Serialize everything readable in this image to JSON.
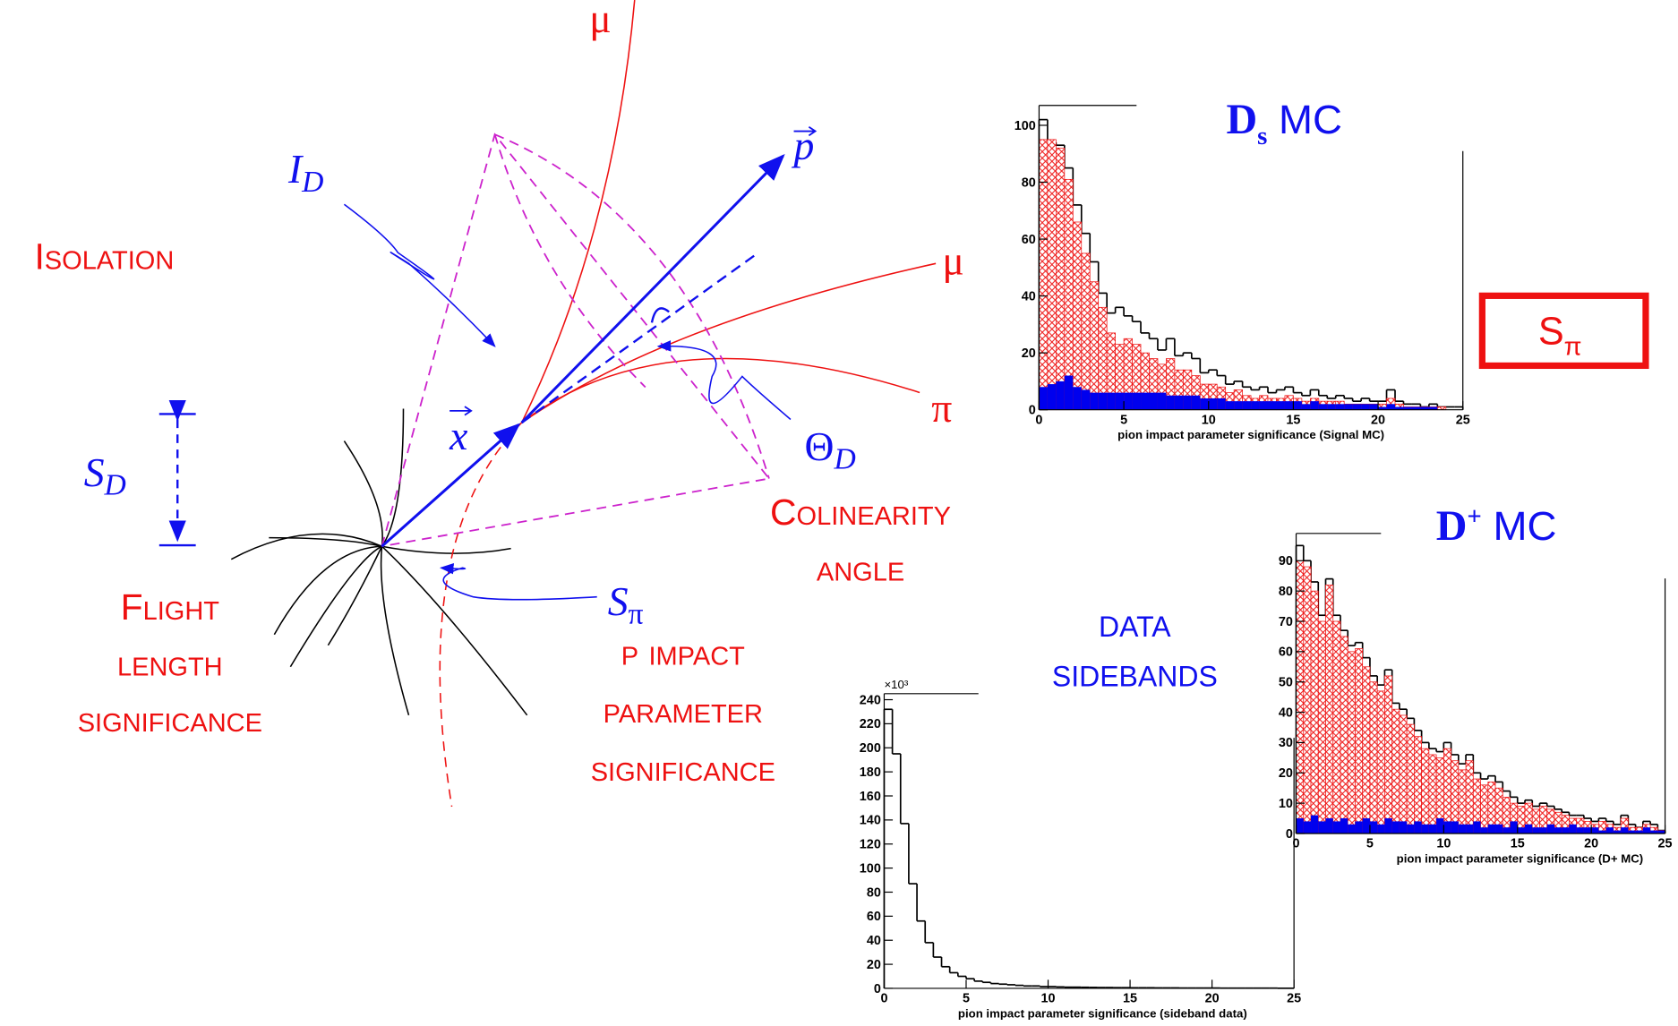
{
  "chart_data": [
    {
      "type": "histogram",
      "title_parts": [
        "D",
        "s",
        " MC"
      ],
      "title_script": "sub",
      "xlabel": "pion impact parameter significance (Signal MC)",
      "bins": [
        0,
        0.5,
        1,
        1.5,
        2,
        2.5,
        3,
        3.5,
        4,
        4.5,
        5,
        5.5,
        6,
        6.5,
        7,
        7.5,
        8,
        8.5,
        9,
        9.5,
        10,
        10.5,
        11,
        11.5,
        12,
        12.5,
        13,
        13.5,
        14,
        14.5,
        15,
        15.5,
        16,
        16.5,
        17,
        17.5,
        18,
        18.5,
        19,
        19.5,
        20,
        20.5,
        21,
        21.5,
        22,
        22.5,
        23,
        23.5,
        24,
        24.5,
        25
      ],
      "xlim": [
        0,
        25
      ],
      "xticks": [
        0,
        5,
        10,
        15,
        20,
        25
      ],
      "ylim": [
        0,
        107
      ],
      "yticks": [
        0,
        20,
        40,
        60,
        80,
        100
      ],
      "series": [
        {
          "color": "#000000",
          "fill": "none",
          "values": [
            102,
            94,
            93,
            85,
            72,
            62,
            52,
            41,
            34,
            36,
            33,
            31,
            27,
            25,
            21,
            25,
            19,
            20,
            18,
            13,
            14,
            12,
            9,
            10,
            8,
            7,
            8,
            6,
            7,
            8,
            6,
            5,
            7,
            5,
            4,
            5,
            4,
            3,
            4,
            3,
            3,
            7,
            3,
            2,
            2,
            1,
            2,
            1,
            1,
            1
          ]
        },
        {
          "color": "#ee1111",
          "fill": "hatch",
          "values": [
            95,
            95,
            92,
            81,
            66,
            55,
            45,
            36,
            27,
            23,
            25,
            23,
            20,
            18,
            16,
            18,
            14,
            14,
            12,
            9,
            9,
            8,
            6,
            7,
            5,
            4,
            5,
            4,
            4,
            5,
            4,
            3,
            4,
            3,
            3,
            3,
            2,
            2,
            2,
            2,
            2,
            4,
            2,
            1,
            1,
            1,
            1,
            1,
            0,
            0
          ]
        },
        {
          "color": "#0000ee",
          "fill": "solid",
          "values": [
            8,
            9,
            10,
            12,
            8,
            7,
            6,
            6,
            6,
            6,
            6,
            6,
            6,
            6,
            6,
            5,
            5,
            5,
            5,
            4,
            4,
            4,
            3,
            3,
            3,
            3,
            3,
            3,
            3,
            3,
            3,
            2,
            3,
            2,
            2,
            2,
            2,
            2,
            2,
            2,
            1,
            2,
            1,
            1,
            1,
            1,
            1,
            0,
            0,
            0
          ]
        }
      ]
    },
    {
      "type": "histogram",
      "title_parts": [
        "D",
        "+",
        " MC"
      ],
      "title_script": "sup",
      "xlabel": "pion impact parameter significance (D+ MC)",
      "bins": [
        0,
        0.5,
        1,
        1.5,
        2,
        2.5,
        3,
        3.5,
        4,
        4.5,
        5,
        5.5,
        6,
        6.5,
        7,
        7.5,
        8,
        8.5,
        9,
        9.5,
        10,
        10.5,
        11,
        11.5,
        12,
        12.5,
        13,
        13.5,
        14,
        14.5,
        15,
        15.5,
        16,
        16.5,
        17,
        17.5,
        18,
        18.5,
        19,
        19.5,
        20,
        20.5,
        21,
        21.5,
        22,
        22.5,
        23,
        23.5,
        24,
        24.5,
        25
      ],
      "xlim": [
        0,
        25
      ],
      "xticks": [
        0,
        5,
        10,
        15,
        20,
        25
      ],
      "ylim": [
        0,
        99
      ],
      "yticks": [
        0,
        10,
        20,
        30,
        40,
        50,
        60,
        70,
        80,
        90
      ],
      "series": [
        {
          "color": "#000000",
          "fill": "none",
          "values": [
            95,
            90,
            83,
            72,
            84,
            72,
            67,
            62,
            63,
            58,
            52,
            49,
            54,
            43,
            41,
            38,
            34,
            30,
            28,
            27,
            30,
            26,
            23,
            26,
            20,
            18,
            19,
            17,
            14,
            12,
            10,
            11,
            9,
            10,
            9,
            8,
            7,
            6,
            6,
            5,
            4,
            5,
            4,
            3,
            6,
            3,
            2,
            4,
            3,
            1
          ]
        },
        {
          "color": "#ee1111",
          "fill": "hatch",
          "values": [
            90,
            88,
            80,
            70,
            82,
            70,
            65,
            60,
            61,
            55,
            50,
            47,
            52,
            41,
            39,
            36,
            32,
            28,
            26,
            25,
            28,
            24,
            21,
            24,
            18,
            16,
            17,
            15,
            12,
            10,
            9,
            10,
            8,
            9,
            8,
            7,
            6,
            5,
            5,
            4,
            3,
            4,
            3,
            2,
            5,
            2,
            2,
            3,
            2,
            1
          ]
        },
        {
          "color": "#0000ee",
          "fill": "solid",
          "values": [
            5,
            4,
            6,
            4,
            5,
            4,
            5,
            3,
            4,
            5,
            4,
            3,
            5,
            4,
            4,
            3,
            4,
            3,
            3,
            5,
            4,
            4,
            3,
            3,
            4,
            2,
            3,
            3,
            2,
            4,
            2,
            3,
            2,
            2,
            3,
            2,
            2,
            3,
            2,
            2,
            2,
            1,
            2,
            1,
            2,
            1,
            1,
            2,
            1,
            1
          ]
        }
      ]
    },
    {
      "type": "histogram",
      "ylabel_multiplier": "×10³",
      "xlabel": "pion impact parameter significance (sideband data)",
      "bins": [
        0,
        0.5,
        1,
        1.5,
        2,
        2.5,
        3,
        3.5,
        4,
        4.5,
        5,
        5.5,
        6,
        6.5,
        7,
        7.5,
        8,
        8.5,
        9,
        9.5,
        10,
        10.5,
        11,
        11.5,
        12,
        12.5,
        13,
        13.5,
        14,
        14.5,
        15,
        15.5,
        16,
        16.5,
        17,
        17.5,
        18,
        18.5,
        19,
        19.5,
        20,
        20.5,
        21,
        21.5,
        22,
        22.5,
        23,
        23.5,
        24,
        24.5,
        25
      ],
      "xlim": [
        0,
        25
      ],
      "xticks": [
        0,
        5,
        10,
        15,
        20,
        25
      ],
      "ylim": [
        0,
        245
      ],
      "yticks": [
        0,
        20,
        40,
        60,
        80,
        100,
        120,
        140,
        160,
        180,
        200,
        220,
        240
      ],
      "series": [
        {
          "color": "#000000",
          "fill": "none",
          "values": [
            232,
            195,
            137,
            87,
            56,
            38,
            26,
            18,
            13,
            10,
            8,
            6,
            5,
            4,
            3.5,
            3,
            2.5,
            2,
            2,
            1.5,
            1.5,
            1.2,
            1,
            1,
            0.9,
            0.8,
            0.7,
            0.7,
            0.6,
            0.6,
            0.5,
            0.5,
            0.5,
            0.4,
            0.4,
            0.4,
            0.3,
            0.3,
            0.3,
            0.3,
            0.3,
            0.2,
            0.2,
            0.2,
            0.2,
            0.2,
            0.2,
            0.2,
            0.1,
            0.1
          ]
        }
      ]
    }
  ],
  "diagram": {
    "isolation": "Isolation",
    "colinearity": [
      "Colinearity",
      "angle"
    ],
    "flight": [
      "Flight",
      "length",
      "significance"
    ],
    "impact": [
      "p impact",
      "parameter",
      "significance"
    ],
    "data_sidebands": [
      "data",
      "sidebands"
    ],
    "s_pi_box": [
      "S",
      "π"
    ],
    "i_d": [
      "I",
      "D"
    ],
    "theta_d": [
      "Θ",
      "D"
    ],
    "s_d": [
      "S",
      "D"
    ],
    "s_pi": [
      "S",
      "π"
    ],
    "x_vec": "x",
    "p_vec": "p",
    "mu_top": "μ",
    "mu_right": "μ",
    "pi": "π"
  }
}
